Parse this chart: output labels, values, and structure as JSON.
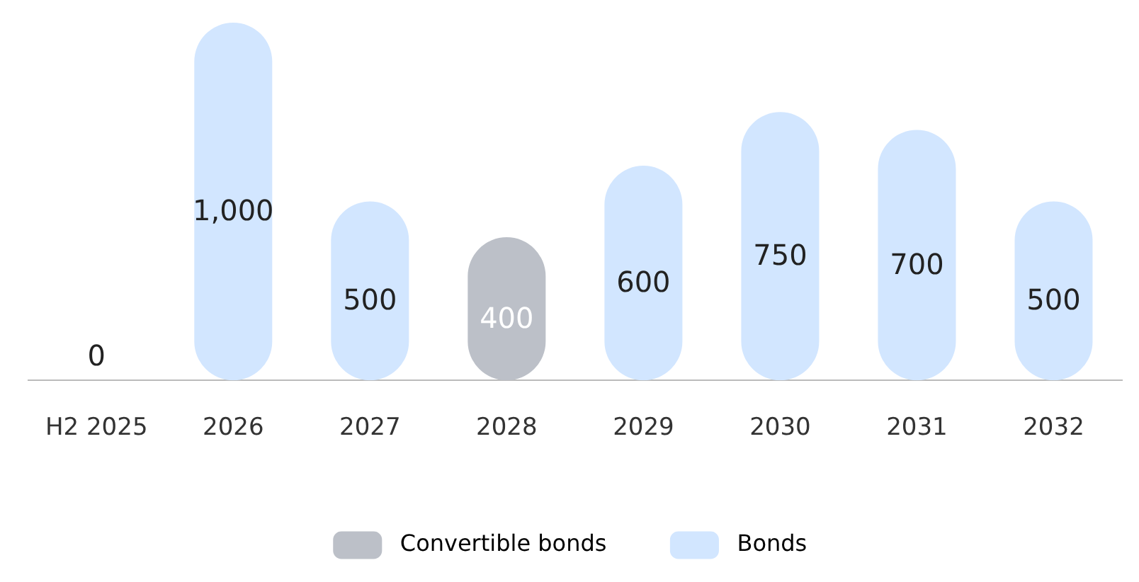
{
  "chart_data": {
    "type": "bar",
    "stacked": true,
    "categories": [
      "H2 2025",
      "2026",
      "2027",
      "2028",
      "2029",
      "2030",
      "2031",
      "2032"
    ],
    "series": [
      {
        "name": "Convertible bonds",
        "color": "#bcc0c8",
        "values": [
          null,
          null,
          null,
          400,
          null,
          null,
          null,
          null
        ],
        "value_labels": [
          null,
          null,
          null,
          "400",
          null,
          null,
          null,
          null
        ]
      },
      {
        "name": "Bonds",
        "color": "#d2e6ff",
        "values": [
          0,
          1000,
          500,
          null,
          600,
          750,
          700,
          500
        ],
        "value_labels": [
          "0",
          "1,000",
          "500",
          null,
          "600",
          "750",
          "700",
          "500"
        ]
      }
    ],
    "grid": false,
    "legend": "bottom"
  }
}
